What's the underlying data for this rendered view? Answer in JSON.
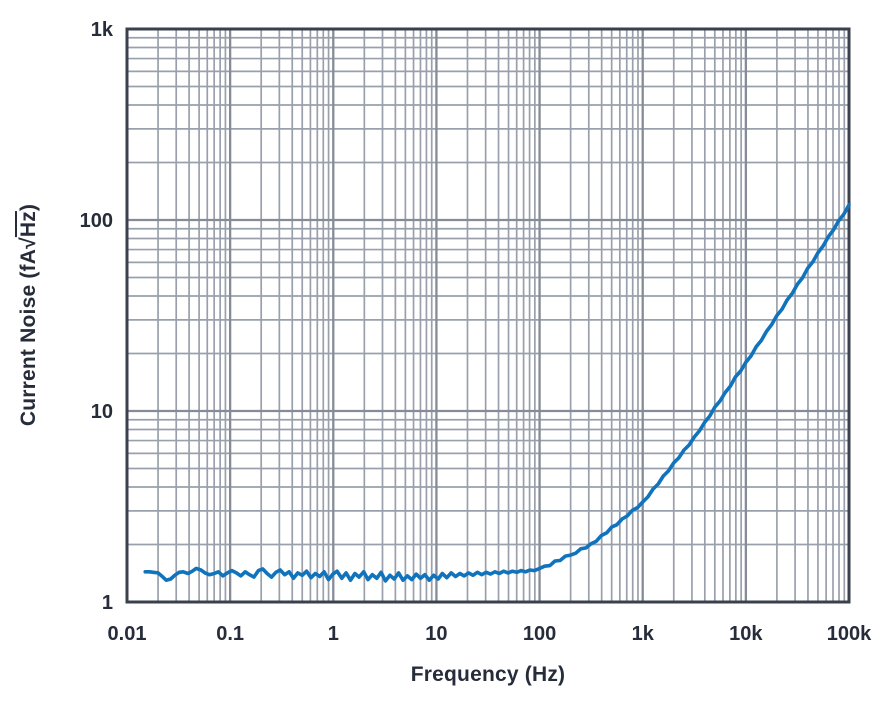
{
  "chart_data": {
    "type": "line",
    "title": "",
    "xlabel": "Frequency (Hz)",
    "ylabel": "Current Noise (fA√Hz)",
    "ylabel_parts": {
      "prefix": "Current Noise (fA",
      "radical": "√",
      "radicand": "Hz",
      "suffix": ")"
    },
    "x_axis": {
      "scale": "log",
      "min": 0.01,
      "max": 100000,
      "tick_labels": [
        "0.01",
        "0.1",
        "1",
        "10",
        "100",
        "1k",
        "10k",
        "100k"
      ]
    },
    "y_axis": {
      "scale": "log",
      "min": 1,
      "max": 1000,
      "tick_labels": [
        "1",
        "10",
        "100",
        "1k"
      ]
    },
    "grid": "major+minor, log-log, on",
    "legend": "none",
    "series": [
      {
        "name": "current-noise",
        "color": "#1173bc",
        "points": [
          [
            0.015,
            1.44
          ],
          [
            0.0165,
            1.44
          ],
          [
            0.018,
            1.43
          ],
          [
            0.02,
            1.42
          ],
          [
            0.022,
            1.36
          ],
          [
            0.024,
            1.3
          ],
          [
            0.0265,
            1.32
          ],
          [
            0.029,
            1.38
          ],
          [
            0.032,
            1.43
          ],
          [
            0.035,
            1.44
          ],
          [
            0.039,
            1.41
          ],
          [
            0.043,
            1.45
          ],
          [
            0.047,
            1.5
          ],
          [
            0.052,
            1.47
          ],
          [
            0.057,
            1.42
          ],
          [
            0.063,
            1.39
          ],
          [
            0.07,
            1.41
          ],
          [
            0.077,
            1.44
          ],
          [
            0.085,
            1.37
          ],
          [
            0.094,
            1.42
          ],
          [
            0.104,
            1.46
          ],
          [
            0.115,
            1.42
          ],
          [
            0.127,
            1.37
          ],
          [
            0.14,
            1.44
          ],
          [
            0.154,
            1.39
          ],
          [
            0.17,
            1.35
          ],
          [
            0.188,
            1.46
          ],
          [
            0.207,
            1.49
          ],
          [
            0.228,
            1.41
          ],
          [
            0.252,
            1.35
          ],
          [
            0.278,
            1.43
          ],
          [
            0.306,
            1.47
          ],
          [
            0.338,
            1.39
          ],
          [
            0.373,
            1.44
          ],
          [
            0.411,
            1.33
          ],
          [
            0.453,
            1.42
          ],
          [
            0.5,
            1.38
          ],
          [
            0.551,
            1.45
          ],
          [
            0.608,
            1.34
          ],
          [
            0.67,
            1.41
          ],
          [
            0.739,
            1.36
          ],
          [
            0.815,
            1.44
          ],
          [
            0.899,
            1.31
          ],
          [
            0.991,
            1.4
          ],
          [
            1.09,
            1.45
          ],
          [
            1.21,
            1.33
          ],
          [
            1.33,
            1.42
          ],
          [
            1.47,
            1.3
          ],
          [
            1.62,
            1.41
          ],
          [
            1.78,
            1.35
          ],
          [
            1.97,
            1.44
          ],
          [
            2.17,
            1.31
          ],
          [
            2.39,
            1.39
          ],
          [
            2.64,
            1.33
          ],
          [
            2.91,
            1.43
          ],
          [
            3.21,
            1.29
          ],
          [
            3.54,
            1.38
          ],
          [
            3.9,
            1.32
          ],
          [
            4.3,
            1.42
          ],
          [
            4.74,
            1.3
          ],
          [
            5.23,
            1.37
          ],
          [
            5.77,
            1.31
          ],
          [
            6.36,
            1.4
          ],
          [
            7.01,
            1.33
          ],
          [
            7.73,
            1.39
          ],
          [
            8.52,
            1.3
          ],
          [
            9.4,
            1.38
          ],
          [
            10.4,
            1.32
          ],
          [
            11.4,
            1.41
          ],
          [
            12.6,
            1.34
          ],
          [
            13.9,
            1.42
          ],
          [
            15.3,
            1.36
          ],
          [
            16.9,
            1.41
          ],
          [
            18.6,
            1.37
          ],
          [
            20.5,
            1.42
          ],
          [
            22.6,
            1.38
          ],
          [
            25,
            1.43
          ],
          [
            27.5,
            1.39
          ],
          [
            30.3,
            1.43
          ],
          [
            33.5,
            1.4
          ],
          [
            36.9,
            1.44
          ],
          [
            40.7,
            1.41
          ],
          [
            44.8,
            1.45
          ],
          [
            49.4,
            1.42
          ],
          [
            54.5,
            1.45
          ],
          [
            60.1,
            1.43
          ],
          [
            66.3,
            1.46
          ],
          [
            73.1,
            1.44
          ],
          [
            80.6,
            1.47
          ],
          [
            88.8,
            1.46
          ],
          [
            97.9,
            1.49
          ],
          [
            112,
            1.54
          ],
          [
            126,
            1.55
          ],
          [
            141,
            1.64
          ],
          [
            158,
            1.65
          ],
          [
            178,
            1.74
          ],
          [
            200,
            1.76
          ],
          [
            224,
            1.8
          ],
          [
            251,
            1.9
          ],
          [
            282,
            1.92
          ],
          [
            316,
            2.02
          ],
          [
            355,
            2.08
          ],
          [
            398,
            2.23
          ],
          [
            447,
            2.3
          ],
          [
            501,
            2.47
          ],
          [
            562,
            2.54
          ],
          [
            631,
            2.72
          ],
          [
            708,
            2.82
          ],
          [
            794,
            3.02
          ],
          [
            891,
            3.12
          ],
          [
            1000,
            3.34
          ],
          [
            1122,
            3.55
          ],
          [
            1259,
            3.9
          ],
          [
            1413,
            4.15
          ],
          [
            1585,
            4.57
          ],
          [
            1778,
            4.86
          ],
          [
            1995,
            5.35
          ],
          [
            2239,
            5.68
          ],
          [
            2512,
            6.25
          ],
          [
            2818,
            6.64
          ],
          [
            3162,
            7.31
          ],
          [
            3548,
            7.87
          ],
          [
            3981,
            8.72
          ],
          [
            4467,
            9.41
          ],
          [
            5012,
            10.5
          ],
          [
            5623,
            11.3
          ],
          [
            6310,
            12.5
          ],
          [
            7079,
            13.5
          ],
          [
            7943,
            15.1
          ],
          [
            8913,
            16.2
          ],
          [
            10000,
            18.0
          ],
          [
            11220,
            19.4
          ],
          [
            12589,
            21.7
          ],
          [
            14125,
            23.4
          ],
          [
            15849,
            26.1
          ],
          [
            17783,
            28.3
          ],
          [
            19953,
            31.6
          ],
          [
            22387,
            34.1
          ],
          [
            25119,
            38.1
          ],
          [
            28184,
            41.3
          ],
          [
            31623,
            46.1
          ],
          [
            35481,
            49.9
          ],
          [
            39811,
            55.9
          ],
          [
            44668,
            60.4
          ],
          [
            50119,
            67.6
          ],
          [
            56234,
            73.2
          ],
          [
            63096,
            81.9
          ],
          [
            70795,
            88.7
          ],
          [
            79433,
            99.2
          ],
          [
            89125,
            107.3
          ],
          [
            100000,
            120
          ]
        ]
      }
    ],
    "annotations": []
  },
  "colors": {
    "curve": "#1173bc",
    "grid_minor": "#9aa0ab",
    "grid_major": "#858c98",
    "frame": "#3a404c",
    "text": "#272c3a",
    "background": "#ffffff"
  }
}
